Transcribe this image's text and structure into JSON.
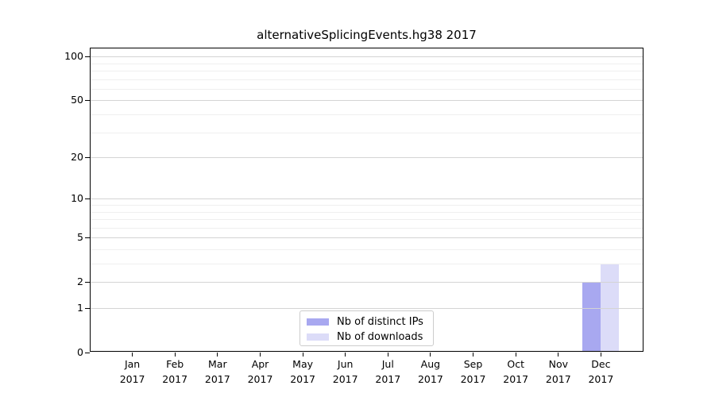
{
  "chart_data": {
    "type": "bar",
    "title": "alternativeSplicingEvents.hg38 2017",
    "x_axis": {
      "categories": [
        "Jan 2017",
        "Feb 2017",
        "Mar 2017",
        "Apr 2017",
        "May 2017",
        "Jun 2017",
        "Jul 2017",
        "Aug 2017",
        "Sep 2017",
        "Oct 2017",
        "Nov 2017",
        "Dec 2017"
      ],
      "month_labels": [
        "Jan",
        "Feb",
        "Mar",
        "Apr",
        "May",
        "Jun",
        "Jul",
        "Aug",
        "Sep",
        "Oct",
        "Nov",
        "Dec"
      ],
      "year": "2017"
    },
    "y_axis": {
      "scale": "log1p",
      "major_ticks": [
        0,
        1,
        2,
        5,
        10,
        20,
        50,
        100
      ],
      "minor_gridlines": [
        3,
        4,
        6,
        7,
        8,
        9,
        30,
        40,
        60,
        70,
        80,
        90
      ],
      "range": [
        0,
        115
      ]
    },
    "series": [
      {
        "name": "Nb of distinct IPs",
        "color": "#a8a8f0",
        "values": [
          0,
          0,
          0,
          0,
          0,
          0,
          0,
          0,
          0,
          0,
          0,
          2
        ]
      },
      {
        "name": "Nb of downloads",
        "color": "#dcdcf8",
        "values": [
          0,
          0,
          0,
          0,
          0,
          0,
          0,
          0,
          0,
          0,
          0,
          3
        ]
      }
    ],
    "grid": {
      "major_color": "#d4d4d4",
      "minor_color": "#efefef",
      "gridlines_on_top_of_bars": true
    },
    "legend": {
      "labels": [
        "Nb of distinct IPs",
        "Nb of downloads"
      ],
      "position": "bottom-center-inside"
    }
  }
}
